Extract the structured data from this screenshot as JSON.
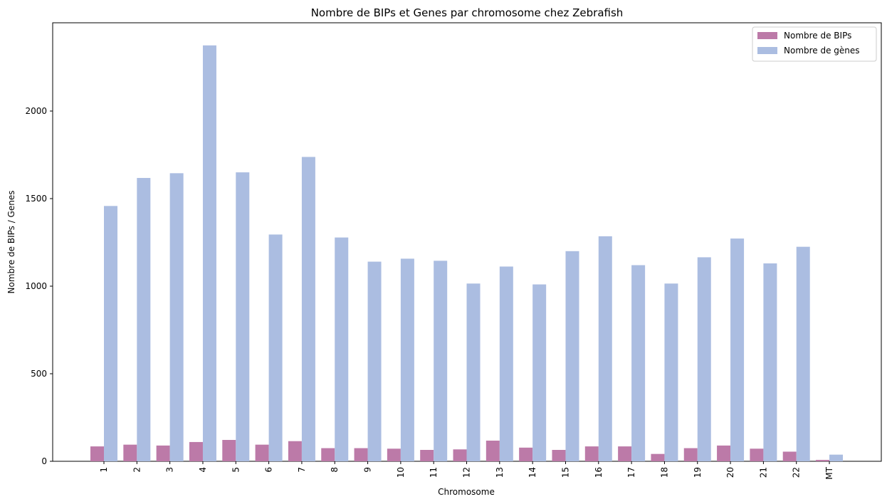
{
  "chart_data": {
    "type": "bar",
    "title": "Nombre de BIPs et Genes par chromosome chez Zebrafish",
    "xlabel": "Chromosome",
    "ylabel": "Nombre de BIPs / Genes",
    "categories": [
      "1",
      "2",
      "3",
      "4",
      "5",
      "6",
      "7",
      "8",
      "9",
      "10",
      "11",
      "12",
      "13",
      "14",
      "15",
      "16",
      "17",
      "18",
      "19",
      "20",
      "21",
      "22",
      "MT"
    ],
    "series": [
      {
        "name": "Nombre de BIPs",
        "color": "#bc7aa8",
        "values": [
          85,
          95,
          90,
          110,
          122,
          95,
          115,
          75,
          75,
          72,
          65,
          68,
          118,
          78,
          65,
          85,
          85,
          42,
          75,
          90,
          72,
          55,
          8
        ]
      },
      {
        "name": "Nombre de gènes",
        "color": "#abbde1",
        "values": [
          1458,
          1618,
          1645,
          2375,
          1650,
          1295,
          1738,
          1278,
          1140,
          1157,
          1145,
          1015,
          1112,
          1010,
          1200,
          1285,
          1120,
          1015,
          1165,
          1272,
          1130,
          1225,
          38
        ]
      }
    ],
    "ylim": [
      0,
      2500
    ],
    "yticks": [
      0,
      500,
      1000,
      1500,
      2000
    ],
    "grid": false,
    "legend_position": "top-right"
  }
}
